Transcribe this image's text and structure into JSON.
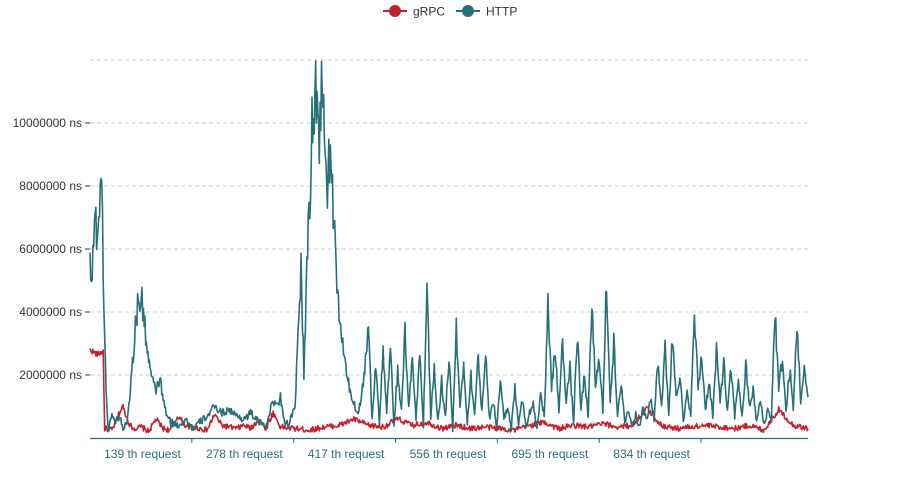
{
  "colors": {
    "grpc": "#c0232f",
    "http": "#287077",
    "grid": "#cccccc",
    "axis": "#287077"
  },
  "chart_data": {
    "type": "line",
    "title": "",
    "xlabel": "",
    "ylabel": "",
    "x_count": 980,
    "ylim": [
      0,
      12000000
    ],
    "grid": true,
    "legend_position": "top-center",
    "yticks": [
      2000000,
      4000000,
      6000000,
      8000000,
      10000000
    ],
    "ytick_labels": [
      "2000000 ns",
      "4000000 ns",
      "6000000 ns",
      "8000000 ns",
      "10000000 ns"
    ],
    "xticks": [
      139,
      278,
      417,
      556,
      695,
      834
    ],
    "xtick_labels": [
      "139 th request",
      "278 th request",
      "417 th request",
      "556 th request",
      "695 th request",
      "834 th request"
    ],
    "series": [
      {
        "name": "gRPC",
        "color": "#c0232f",
        "anchors": [
          [
            0,
            2800000
          ],
          [
            10,
            2650000
          ],
          [
            18,
            2750000
          ],
          [
            20,
            300000
          ],
          [
            30,
            250000
          ],
          [
            35,
            500000
          ],
          [
            40,
            800000
          ],
          [
            45,
            1000000
          ],
          [
            50,
            650000
          ],
          [
            55,
            400000
          ],
          [
            60,
            300000
          ],
          [
            70,
            350000
          ],
          [
            80,
            200000
          ],
          [
            90,
            600000
          ],
          [
            100,
            300000
          ],
          [
            110,
            250000
          ],
          [
            120,
            700000
          ],
          [
            130,
            400000
          ],
          [
            140,
            350000
          ],
          [
            150,
            300000
          ],
          [
            160,
            250000
          ],
          [
            170,
            750000
          ],
          [
            180,
            400000
          ],
          [
            190,
            350000
          ],
          [
            200,
            300000
          ],
          [
            210,
            400000
          ],
          [
            220,
            300000
          ],
          [
            230,
            600000
          ],
          [
            240,
            300000
          ],
          [
            250,
            800000
          ],
          [
            260,
            350000
          ],
          [
            280,
            300000
          ],
          [
            300,
            250000
          ],
          [
            320,
            350000
          ],
          [
            340,
            400000
          ],
          [
            360,
            600000
          ],
          [
            380,
            400000
          ],
          [
            400,
            350000
          ],
          [
            420,
            600000
          ],
          [
            440,
            400000
          ],
          [
            460,
            500000
          ],
          [
            480,
            300000
          ],
          [
            500,
            400000
          ],
          [
            520,
            300000
          ],
          [
            540,
            350000
          ],
          [
            560,
            300000
          ],
          [
            580,
            250000
          ],
          [
            600,
            400000
          ],
          [
            620,
            500000
          ],
          [
            640,
            300000
          ],
          [
            660,
            400000
          ],
          [
            680,
            350000
          ],
          [
            700,
            450000
          ],
          [
            720,
            350000
          ],
          [
            740,
            400000
          ],
          [
            760,
            950000
          ],
          [
            780,
            400000
          ],
          [
            800,
            300000
          ],
          [
            820,
            350000
          ],
          [
            840,
            400000
          ],
          [
            860,
            350000
          ],
          [
            880,
            300000
          ],
          [
            900,
            400000
          ],
          [
            920,
            250000
          ],
          [
            940,
            900000
          ],
          [
            960,
            400000
          ],
          [
            980,
            300000
          ]
        ]
      },
      {
        "name": "HTTP",
        "color": "#287077",
        "anchors": [
          [
            0,
            5700000
          ],
          [
            3,
            5300000
          ],
          [
            6,
            7000000
          ],
          [
            10,
            6500000
          ],
          [
            14,
            7800000
          ],
          [
            17,
            7300000
          ],
          [
            19,
            4000000
          ],
          [
            22,
            1500000
          ],
          [
            25,
            200000
          ],
          [
            30,
            800000
          ],
          [
            35,
            500000
          ],
          [
            40,
            700000
          ],
          [
            45,
            300000
          ],
          [
            50,
            500000
          ],
          [
            55,
            1500000
          ],
          [
            60,
            3000000
          ],
          [
            65,
            4200000
          ],
          [
            70,
            4500000
          ],
          [
            75,
            3500000
          ],
          [
            80,
            2500000
          ],
          [
            85,
            1800000
          ],
          [
            90,
            1500000
          ],
          [
            95,
            1900000
          ],
          [
            100,
            1200000
          ],
          [
            105,
            700000
          ],
          [
            110,
            500000
          ],
          [
            120,
            400000
          ],
          [
            130,
            600000
          ],
          [
            140,
            300000
          ],
          [
            150,
            500000
          ],
          [
            160,
            700000
          ],
          [
            170,
            1000000
          ],
          [
            180,
            800000
          ],
          [
            190,
            900000
          ],
          [
            200,
            700000
          ],
          [
            210,
            600000
          ],
          [
            220,
            800000
          ],
          [
            230,
            500000
          ],
          [
            240,
            400000
          ],
          [
            250,
            1200000
          ],
          [
            255,
            1000000
          ],
          [
            260,
            1300000
          ],
          [
            265,
            600000
          ],
          [
            270,
            400000
          ],
          [
            275,
            700000
          ],
          [
            280,
            900000
          ],
          [
            285,
            4000000
          ],
          [
            288,
            5400000
          ],
          [
            292,
            2000000
          ],
          [
            296,
            5500000
          ],
          [
            300,
            7500000
          ],
          [
            304,
            10500000
          ],
          [
            308,
            11200000
          ],
          [
            312,
            9500000
          ],
          [
            316,
            10800000
          ],
          [
            320,
            9800000
          ],
          [
            324,
            8000000
          ],
          [
            328,
            9200000
          ],
          [
            332,
            7500000
          ],
          [
            336,
            5000000
          ],
          [
            340,
            4000000
          ],
          [
            345,
            3000000
          ],
          [
            350,
            2000000
          ],
          [
            355,
            1500000
          ],
          [
            360,
            1100000
          ],
          [
            365,
            800000
          ],
          [
            370,
            1200000
          ],
          [
            375,
            2200000
          ],
          [
            380,
            3600000
          ],
          [
            385,
            600000
          ],
          [
            390,
            2400000
          ],
          [
            395,
            500000
          ],
          [
            400,
            2700000
          ],
          [
            405,
            800000
          ],
          [
            410,
            2800000
          ],
          [
            415,
            400000
          ],
          [
            420,
            2200000
          ],
          [
            425,
            800000
          ],
          [
            430,
            3300000
          ],
          [
            435,
            1000000
          ],
          [
            440,
            2500000
          ],
          [
            445,
            600000
          ],
          [
            450,
            2800000
          ],
          [
            455,
            400000
          ],
          [
            460,
            4900000
          ],
          [
            465,
            700000
          ],
          [
            470,
            2200000
          ],
          [
            475,
            500000
          ],
          [
            480,
            1800000
          ],
          [
            485,
            600000
          ],
          [
            490,
            2700000
          ],
          [
            495,
            300000
          ],
          [
            500,
            3400000
          ],
          [
            505,
            1000000
          ],
          [
            510,
            2300000
          ],
          [
            515,
            500000
          ],
          [
            520,
            2000000
          ],
          [
            525,
            700000
          ],
          [
            530,
            2600000
          ],
          [
            535,
            800000
          ],
          [
            540,
            2900000
          ],
          [
            545,
            600000
          ],
          [
            550,
            1200000
          ],
          [
            555,
            400000
          ],
          [
            560,
            1700000
          ],
          [
            565,
            700000
          ],
          [
            570,
            900000
          ],
          [
            575,
            300000
          ],
          [
            580,
            1600000
          ],
          [
            585,
            500000
          ],
          [
            590,
            1200000
          ],
          [
            595,
            400000
          ],
          [
            600,
            800000
          ],
          [
            605,
            1100000
          ],
          [
            610,
            300000
          ],
          [
            615,
            1400000
          ],
          [
            620,
            700000
          ],
          [
            625,
            4100000
          ],
          [
            630,
            1600000
          ],
          [
            635,
            2800000
          ],
          [
            640,
            900000
          ],
          [
            645,
            3000000
          ],
          [
            650,
            1200000
          ],
          [
            655,
            2200000
          ],
          [
            660,
            500000
          ],
          [
            665,
            3300000
          ],
          [
            670,
            900000
          ],
          [
            675,
            2000000
          ],
          [
            680,
            600000
          ],
          [
            685,
            4300000
          ],
          [
            690,
            1500000
          ],
          [
            695,
            2700000
          ],
          [
            700,
            800000
          ],
          [
            705,
            5000000
          ],
          [
            710,
            1200000
          ],
          [
            715,
            3000000
          ],
          [
            720,
            600000
          ],
          [
            725,
            1800000
          ],
          [
            730,
            500000
          ],
          [
            735,
            900000
          ],
          [
            740,
            400000
          ],
          [
            745,
            800000
          ],
          [
            750,
            300000
          ],
          [
            755,
            1000000
          ],
          [
            760,
            500000
          ],
          [
            765,
            1300000
          ],
          [
            770,
            600000
          ],
          [
            775,
            2500000
          ],
          [
            780,
            1000000
          ],
          [
            785,
            2800000
          ],
          [
            790,
            800000
          ],
          [
            795,
            3200000
          ],
          [
            800,
            1400000
          ],
          [
            805,
            2000000
          ],
          [
            810,
            500000
          ],
          [
            815,
            1400000
          ],
          [
            820,
            800000
          ],
          [
            825,
            3900000
          ],
          [
            830,
            1600000
          ],
          [
            835,
            2600000
          ],
          [
            840,
            900000
          ],
          [
            845,
            1800000
          ],
          [
            850,
            700000
          ],
          [
            855,
            2700000
          ],
          [
            860,
            1200000
          ],
          [
            865,
            2400000
          ],
          [
            870,
            800000
          ],
          [
            875,
            2200000
          ],
          [
            880,
            700000
          ],
          [
            885,
            1900000
          ],
          [
            890,
            600000
          ],
          [
            895,
            2300000
          ],
          [
            900,
            1000000
          ],
          [
            905,
            1500000
          ],
          [
            910,
            500000
          ],
          [
            915,
            1200000
          ],
          [
            920,
            400000
          ],
          [
            925,
            900000
          ],
          [
            930,
            600000
          ],
          [
            935,
            4100000
          ],
          [
            940,
            1500000
          ],
          [
            945,
            2600000
          ],
          [
            950,
            800000
          ],
          [
            955,
            2200000
          ],
          [
            960,
            900000
          ],
          [
            965,
            3700000
          ],
          [
            970,
            1200000
          ],
          [
            975,
            2100000
          ],
          [
            980,
            1300000
          ]
        ]
      }
    ]
  }
}
